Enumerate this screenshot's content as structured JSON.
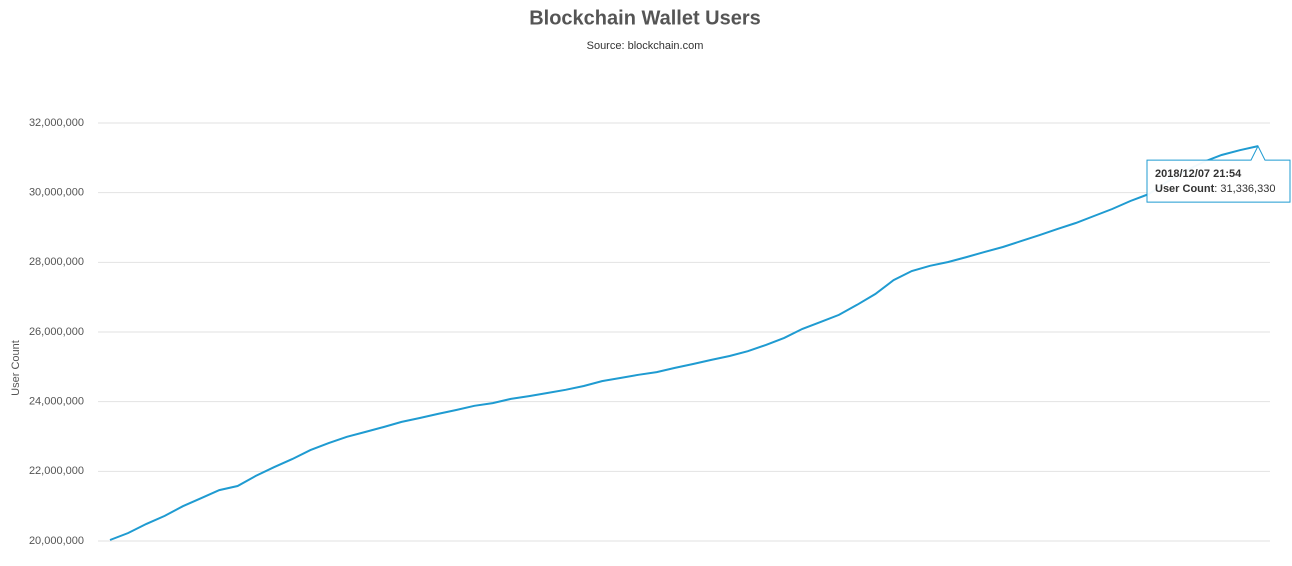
{
  "chart_data": {
    "type": "line",
    "title": "Blockchain Wallet Users",
    "subtitle": "Source: blockchain.com",
    "y_label": "User Count",
    "series": [
      {
        "name": "User Count",
        "color": "#1f9bd1",
        "values": [
          20030000,
          20230000,
          20490000,
          20720000,
          21000000,
          21230000,
          21460000,
          21580000,
          21870000,
          22120000,
          22350000,
          22610000,
          22810000,
          22990000,
          23130000,
          23270000,
          23420000,
          23530000,
          23650000,
          23760000,
          23880000,
          23960000,
          24080000,
          24160000,
          24250000,
          24340000,
          24450000,
          24590000,
          24680000,
          24770000,
          24850000,
          24970000,
          25080000,
          25200000,
          25310000,
          25450000,
          25630000,
          25830000,
          26090000,
          26290000,
          26490000,
          26780000,
          27090000,
          27490000,
          27750000,
          27900000,
          28010000,
          28150000,
          28300000,
          28440000,
          28610000,
          28780000,
          28960000,
          29130000,
          29330000,
          29530000,
          29760000,
          29960000,
          30310000,
          30620000,
          30880000,
          31080000,
          31220000,
          31336330
        ]
      }
    ],
    "ylim": [
      20000000,
      32000000
    ],
    "yticks": [
      {
        "value": 20000000,
        "label": "20,000,000"
      },
      {
        "value": 22000000,
        "label": "22,000,000"
      },
      {
        "value": 24000000,
        "label": "24,000,000"
      },
      {
        "value": 26000000,
        "label": "26,000,000"
      },
      {
        "value": 28000000,
        "label": "28,000,000"
      },
      {
        "value": 30000000,
        "label": "30,000,000"
      },
      {
        "value": 32000000,
        "label": "32,000,000"
      }
    ],
    "grid": true,
    "tooltip": {
      "x": "2018/12/07 21:54",
      "value": {
        "value": 31336330,
        "label": "31,336,330"
      }
    }
  }
}
